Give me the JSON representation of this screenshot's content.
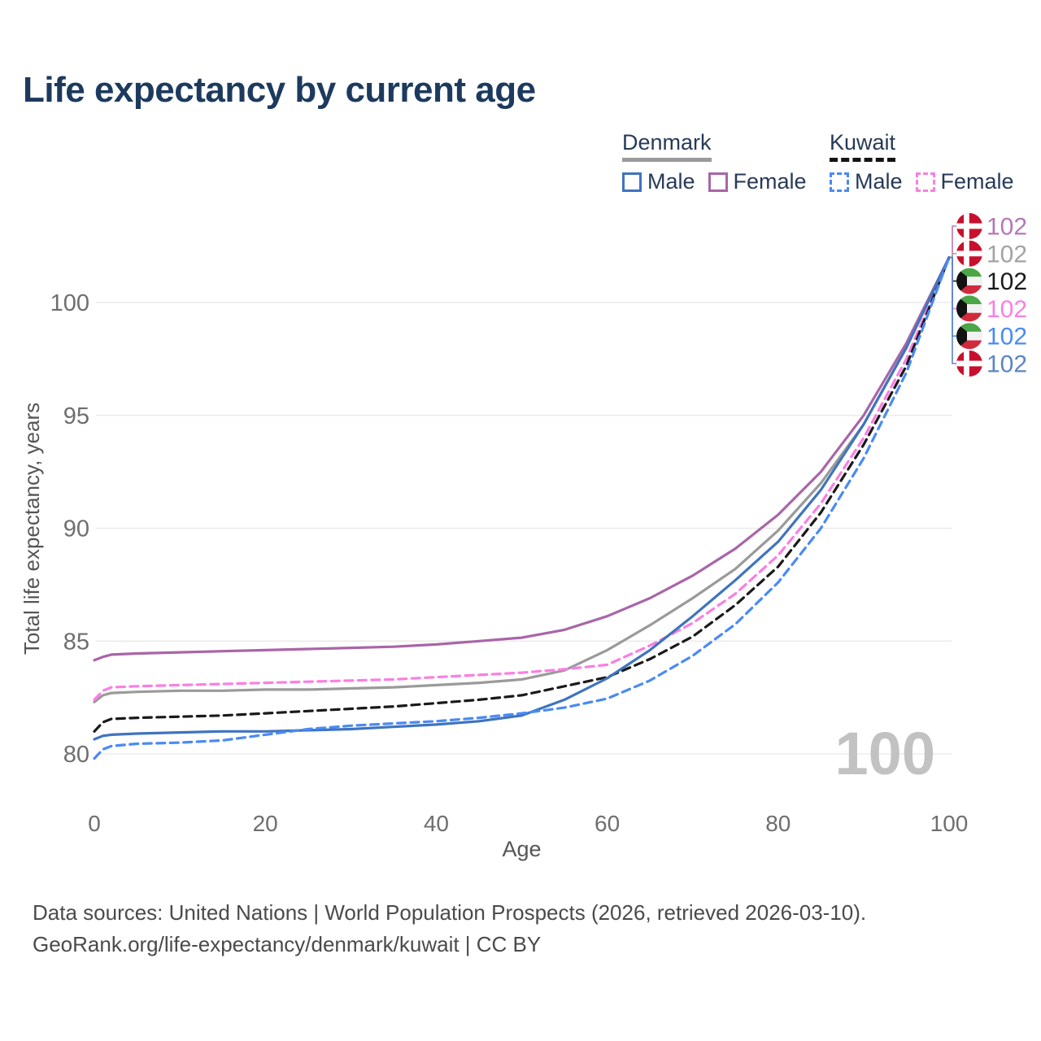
{
  "title": "Life expectancy by current age",
  "legend": {
    "groups": [
      {
        "label": "Denmark",
        "line_style": "solid",
        "underline_color": "#9a9a9a",
        "items": [
          {
            "label": "Male",
            "color": "#3f74bf",
            "dashed": false
          },
          {
            "label": "Female",
            "color": "#a965a8",
            "dashed": false
          }
        ]
      },
      {
        "label": "Kuwait",
        "line_style": "dashed",
        "underline_color": "#141414",
        "items": [
          {
            "label": "Male",
            "color": "#4a8af4",
            "dashed": true
          },
          {
            "label": "Female",
            "color": "#fb7ee3",
            "dashed": true
          }
        ]
      }
    ]
  },
  "chart_data": {
    "type": "line",
    "title": "Life expectancy by current age",
    "xlabel": "Age",
    "ylabel": "Total life expectancy, years",
    "x_ticks": [
      0,
      20,
      40,
      60,
      80,
      100
    ],
    "y_ticks": [
      80,
      85,
      90,
      95,
      100
    ],
    "xlim": [
      0,
      100
    ],
    "ylim": [
      79.5,
      103
    ],
    "grid": "horizontal",
    "legend_position": "top-right",
    "series": [
      {
        "name": "Denmark Female",
        "country": "Denmark",
        "sex": "Female",
        "color": "#a965a8",
        "dashed": false,
        "points": [
          [
            0,
            84.15
          ],
          [
            1,
            84.3
          ],
          [
            2,
            84.4
          ],
          [
            5,
            84.45
          ],
          [
            10,
            84.5
          ],
          [
            15,
            84.55
          ],
          [
            20,
            84.6
          ],
          [
            25,
            84.65
          ],
          [
            30,
            84.7
          ],
          [
            35,
            84.75
          ],
          [
            40,
            84.85
          ],
          [
            45,
            85.0
          ],
          [
            50,
            85.15
          ],
          [
            55,
            85.5
          ],
          [
            60,
            86.1
          ],
          [
            65,
            86.9
          ],
          [
            70,
            87.9
          ],
          [
            75,
            89.1
          ],
          [
            80,
            90.6
          ],
          [
            85,
            92.5
          ],
          [
            90,
            95.0
          ],
          [
            95,
            98.2
          ],
          [
            100,
            102
          ]
        ]
      },
      {
        "name": "Denmark Both sexes",
        "country": "Denmark",
        "sex": "Both",
        "color": "#9a9a9a",
        "dashed": false,
        "points": [
          [
            0,
            82.3
          ],
          [
            1,
            82.6
          ],
          [
            2,
            82.7
          ],
          [
            5,
            82.75
          ],
          [
            10,
            82.8
          ],
          [
            15,
            82.8
          ],
          [
            20,
            82.85
          ],
          [
            25,
            82.85
          ],
          [
            30,
            82.9
          ],
          [
            35,
            82.95
          ],
          [
            40,
            83.05
          ],
          [
            45,
            83.15
          ],
          [
            50,
            83.3
          ],
          [
            55,
            83.7
          ],
          [
            60,
            84.6
          ],
          [
            65,
            85.7
          ],
          [
            70,
            86.9
          ],
          [
            75,
            88.2
          ],
          [
            80,
            89.9
          ],
          [
            85,
            92.0
          ],
          [
            90,
            94.6
          ],
          [
            95,
            98.0
          ],
          [
            100,
            102
          ]
        ]
      },
      {
        "name": "Kuwait Female",
        "country": "Kuwait",
        "sex": "Female",
        "color": "#fb7ee3",
        "dashed": true,
        "points": [
          [
            0,
            82.4
          ],
          [
            1,
            82.8
          ],
          [
            2,
            82.95
          ],
          [
            5,
            83.0
          ],
          [
            10,
            83.05
          ],
          [
            15,
            83.1
          ],
          [
            20,
            83.15
          ],
          [
            25,
            83.2
          ],
          [
            30,
            83.25
          ],
          [
            35,
            83.3
          ],
          [
            40,
            83.4
          ],
          [
            45,
            83.5
          ],
          [
            50,
            83.6
          ],
          [
            55,
            83.75
          ],
          [
            60,
            83.95
          ],
          [
            65,
            84.8
          ],
          [
            70,
            85.8
          ],
          [
            75,
            87.1
          ],
          [
            80,
            88.8
          ],
          [
            85,
            91.1
          ],
          [
            90,
            94.0
          ],
          [
            95,
            97.5
          ],
          [
            100,
            102
          ]
        ]
      },
      {
        "name": "Kuwait Both sexes",
        "country": "Kuwait",
        "sex": "Both",
        "color": "#1a1a1a",
        "dashed": true,
        "points": [
          [
            0,
            81.0
          ],
          [
            1,
            81.4
          ],
          [
            2,
            81.55
          ],
          [
            5,
            81.6
          ],
          [
            10,
            81.65
          ],
          [
            15,
            81.7
          ],
          [
            20,
            81.8
          ],
          [
            25,
            81.9
          ],
          [
            30,
            82.0
          ],
          [
            35,
            82.1
          ],
          [
            40,
            82.25
          ],
          [
            45,
            82.4
          ],
          [
            50,
            82.6
          ],
          [
            55,
            83.0
          ],
          [
            60,
            83.4
          ],
          [
            65,
            84.2
          ],
          [
            70,
            85.2
          ],
          [
            75,
            86.6
          ],
          [
            80,
            88.3
          ],
          [
            85,
            90.7
          ],
          [
            90,
            93.7
          ],
          [
            95,
            97.2
          ],
          [
            100,
            102
          ]
        ]
      },
      {
        "name": "Denmark Male",
        "country": "Denmark",
        "sex": "Male",
        "color": "#3f74bf",
        "dashed": false,
        "points": [
          [
            0,
            80.65
          ],
          [
            1,
            80.8
          ],
          [
            2,
            80.85
          ],
          [
            5,
            80.9
          ],
          [
            10,
            80.95
          ],
          [
            15,
            81.0
          ],
          [
            20,
            81.0
          ],
          [
            25,
            81.05
          ],
          [
            30,
            81.1
          ],
          [
            35,
            81.2
          ],
          [
            40,
            81.3
          ],
          [
            45,
            81.45
          ],
          [
            50,
            81.7
          ],
          [
            55,
            82.4
          ],
          [
            60,
            83.35
          ],
          [
            65,
            84.6
          ],
          [
            70,
            86.1
          ],
          [
            75,
            87.7
          ],
          [
            80,
            89.4
          ],
          [
            85,
            91.7
          ],
          [
            90,
            94.6
          ],
          [
            95,
            98.0
          ],
          [
            100,
            102
          ]
        ]
      },
      {
        "name": "Kuwait Male",
        "country": "Kuwait",
        "sex": "Male",
        "color": "#4a8af4",
        "dashed": true,
        "points": [
          [
            0,
            79.8
          ],
          [
            1,
            80.2
          ],
          [
            2,
            80.35
          ],
          [
            5,
            80.45
          ],
          [
            10,
            80.5
          ],
          [
            15,
            80.6
          ],
          [
            20,
            80.85
          ],
          [
            25,
            81.1
          ],
          [
            30,
            81.25
          ],
          [
            35,
            81.35
          ],
          [
            40,
            81.45
          ],
          [
            45,
            81.6
          ],
          [
            50,
            81.8
          ],
          [
            55,
            82.05
          ],
          [
            60,
            82.45
          ],
          [
            65,
            83.25
          ],
          [
            70,
            84.35
          ],
          [
            75,
            85.75
          ],
          [
            80,
            87.6
          ],
          [
            85,
            90.0
          ],
          [
            90,
            93.1
          ],
          [
            95,
            96.9
          ],
          [
            100,
            102
          ]
        ]
      }
    ],
    "end_labels": [
      {
        "series": "Denmark Female",
        "flag": "dk",
        "value": "102",
        "color": "#b478b4"
      },
      {
        "series": "Denmark Both sexes",
        "flag": "dk",
        "value": "102",
        "color": "#a3a3a3"
      },
      {
        "series": "Kuwait Both sexes",
        "flag": "kw",
        "value": "102",
        "color": "#1a1a1a"
      },
      {
        "series": "Kuwait Female",
        "flag": "kw",
        "value": "102",
        "color": "#fb7ee3"
      },
      {
        "series": "Kuwait Male",
        "flag": "kw",
        "value": "102",
        "color": "#4a8af4"
      },
      {
        "series": "Denmark Male",
        "flag": "dk",
        "value": "102",
        "color": "#5c85c6"
      }
    ],
    "flag_colors": {
      "dk_red": "#c8102e",
      "kw_green": "#4ca546",
      "kw_white": "#f2f2f2",
      "kw_red": "#d12a3c",
      "kw_black": "#121212",
      "cross_white": "#ffffff"
    }
  },
  "watermark": "100",
  "footer": {
    "line1": "Data sources: United Nations | World Population Prospects (2026, retrieved 2026-03-10).",
    "line2": "GeoRank.org/life-expectancy/denmark/kuwait | CC BY"
  }
}
